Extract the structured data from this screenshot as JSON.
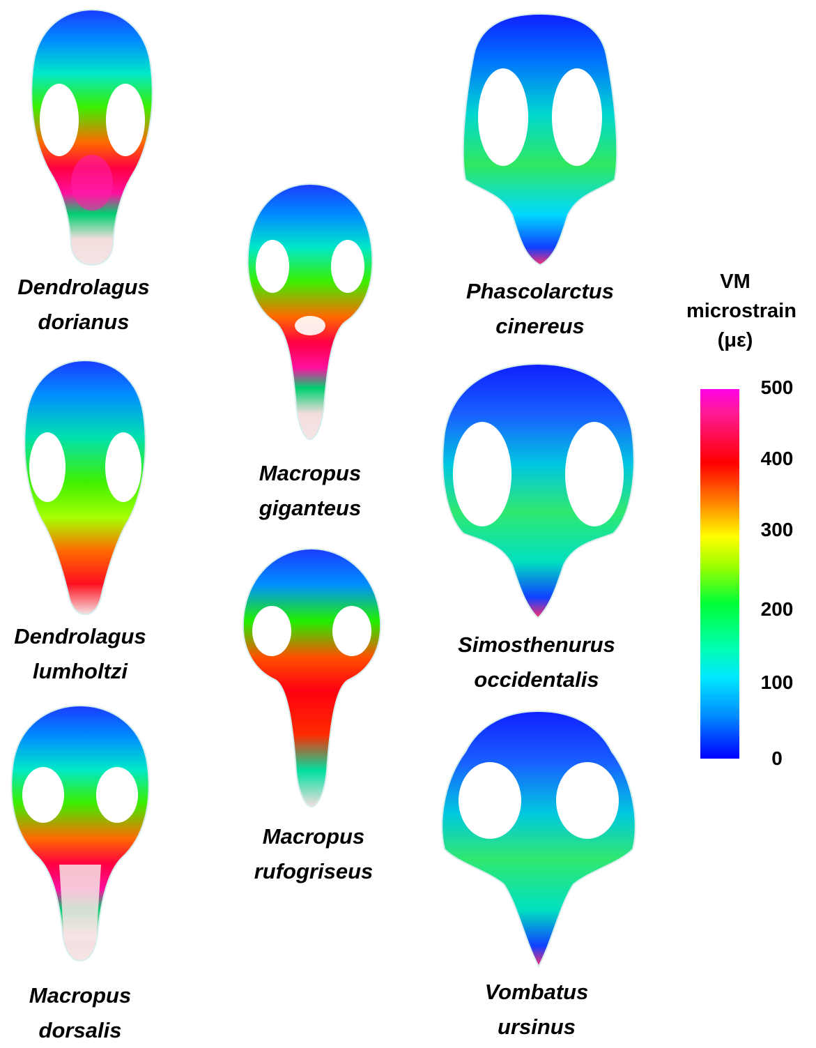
{
  "specimens": [
    {
      "genus": "Dendrolagus",
      "species": "dorianus"
    },
    {
      "genus": "Dendrolagus",
      "species": "lumholtzi"
    },
    {
      "genus": "Macropus",
      "species": "dorsalis"
    },
    {
      "genus": "Macropus",
      "species": "giganteus"
    },
    {
      "genus": "Macropus",
      "species": "rufogriseus"
    },
    {
      "genus": "Phascolarctus",
      "species": "cinereus"
    },
    {
      "genus": "Simosthenurus",
      "species": "occidentalis"
    },
    {
      "genus": "Vombatus",
      "species": "ursinus"
    }
  ],
  "legend": {
    "title_line1": "VM",
    "title_line2": "microstrain",
    "title_line3": "(με)",
    "ticks": [
      "500",
      "400",
      "300",
      "200",
      "100",
      "0"
    ],
    "colors": [
      "#ff00e6",
      "#ff0000",
      "#ffff00",
      "#00ff36",
      "#00e8ff",
      "#0000ff"
    ]
  }
}
